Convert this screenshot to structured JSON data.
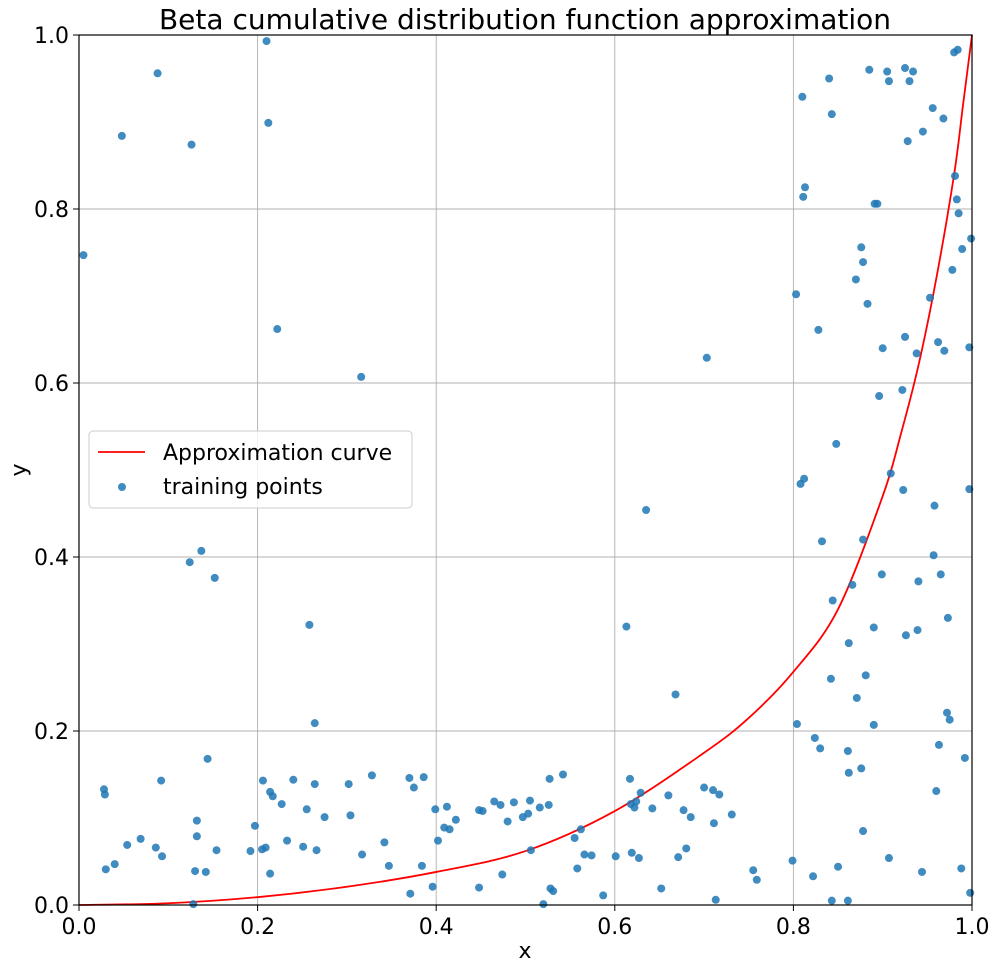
{
  "chart_data": {
    "type": "scatter",
    "title": "Beta cumulative distribution function approximation",
    "xlabel": "x",
    "ylabel": "y",
    "xlim": [
      0.0,
      1.0
    ],
    "ylim": [
      0.0,
      1.0
    ],
    "xticks": [
      "0.0",
      "0.2",
      "0.4",
      "0.6",
      "0.8",
      "1.0"
    ],
    "yticks": [
      "0.0",
      "0.2",
      "0.4",
      "0.6",
      "0.8",
      "1.0"
    ],
    "grid": true,
    "legend_position": "center-left",
    "curve": {
      "name": "Approximation curve",
      "color": "#ff0000",
      "x": [
        0.0,
        0.1,
        0.2,
        0.3,
        0.4,
        0.5,
        0.6,
        0.7,
        0.75,
        0.8,
        0.85,
        0.9,
        0.92,
        0.94,
        0.96,
        0.98,
        0.99,
        1.0
      ],
      "y": [
        0.0,
        0.002,
        0.009,
        0.021,
        0.038,
        0.062,
        0.108,
        0.175,
        0.215,
        0.268,
        0.34,
        0.47,
        0.54,
        0.62,
        0.72,
        0.84,
        0.92,
        1.0
      ]
    },
    "series": [
      {
        "name": "training points",
        "color": "#1f77b4",
        "points": [
          [
            0.005,
            0.747
          ],
          [
            0.028,
            0.133
          ],
          [
            0.029,
            0.127
          ],
          [
            0.03,
            0.041
          ],
          [
            0.04,
            0.047
          ],
          [
            0.048,
            0.884
          ],
          [
            0.054,
            0.069
          ],
          [
            0.069,
            0.076
          ],
          [
            0.086,
            0.066
          ],
          [
            0.088,
            0.956
          ],
          [
            0.092,
            0.143
          ],
          [
            0.093,
            0.056
          ],
          [
            0.124,
            0.394
          ],
          [
            0.126,
            0.874
          ],
          [
            0.128,
            0.001
          ],
          [
            0.13,
            0.039
          ],
          [
            0.132,
            0.097
          ],
          [
            0.132,
            0.079
          ],
          [
            0.137,
            0.407
          ],
          [
            0.142,
            0.038
          ],
          [
            0.144,
            0.168
          ],
          [
            0.152,
            0.376
          ],
          [
            0.154,
            0.063
          ],
          [
            0.192,
            0.062
          ],
          [
            0.197,
            0.091
          ],
          [
            0.205,
            0.064
          ],
          [
            0.206,
            0.143
          ],
          [
            0.209,
            0.066
          ],
          [
            0.21,
            0.993
          ],
          [
            0.212,
            0.899
          ],
          [
            0.214,
            0.13
          ],
          [
            0.214,
            0.036
          ],
          [
            0.217,
            0.125
          ],
          [
            0.222,
            0.662
          ],
          [
            0.227,
            0.116
          ],
          [
            0.233,
            0.074
          ],
          [
            0.24,
            0.144
          ],
          [
            0.251,
            0.067
          ],
          [
            0.255,
            0.11
          ],
          [
            0.258,
            0.322
          ],
          [
            0.264,
            0.209
          ],
          [
            0.264,
            0.139
          ],
          [
            0.266,
            0.063
          ],
          [
            0.275,
            0.101
          ],
          [
            0.302,
            0.139
          ],
          [
            0.304,
            0.103
          ],
          [
            0.316,
            0.607
          ],
          [
            0.317,
            0.058
          ],
          [
            0.328,
            0.149
          ],
          [
            0.342,
            0.072
          ],
          [
            0.347,
            0.045
          ],
          [
            0.37,
            0.146
          ],
          [
            0.371,
            0.013
          ],
          [
            0.375,
            0.135
          ],
          [
            0.384,
            0.045
          ],
          [
            0.386,
            0.147
          ],
          [
            0.396,
            0.021
          ],
          [
            0.399,
            0.11
          ],
          [
            0.402,
            0.074
          ],
          [
            0.409,
            0.089
          ],
          [
            0.412,
            0.113
          ],
          [
            0.415,
            0.087
          ],
          [
            0.422,
            0.098
          ],
          [
            0.448,
            0.109
          ],
          [
            0.448,
            0.02
          ],
          [
            0.452,
            0.108
          ],
          [
            0.465,
            0.119
          ],
          [
            0.472,
            0.115
          ],
          [
            0.474,
            0.035
          ],
          [
            0.48,
            0.096
          ],
          [
            0.487,
            0.118
          ],
          [
            0.497,
            0.101
          ],
          [
            0.503,
            0.105
          ],
          [
            0.505,
            0.12
          ],
          [
            0.506,
            0.063
          ],
          [
            0.516,
            0.112
          ],
          [
            0.52,
            0.001
          ],
          [
            0.526,
            0.115
          ],
          [
            0.527,
            0.145
          ],
          [
            0.528,
            0.019
          ],
          [
            0.531,
            0.016
          ],
          [
            0.542,
            0.15
          ],
          [
            0.555,
            0.077
          ],
          [
            0.558,
            0.042
          ],
          [
            0.562,
            0.087
          ],
          [
            0.566,
            0.058
          ],
          [
            0.574,
            0.057
          ],
          [
            0.587,
            0.011
          ],
          [
            0.601,
            0.056
          ],
          [
            0.613,
            0.32
          ],
          [
            0.617,
            0.145
          ],
          [
            0.618,
            0.116
          ],
          [
            0.619,
            0.06
          ],
          [
            0.622,
            0.112
          ],
          [
            0.624,
            0.119
          ],
          [
            0.627,
            0.054
          ],
          [
            0.629,
            0.129
          ],
          [
            0.635,
            0.454
          ],
          [
            0.642,
            0.111
          ],
          [
            0.652,
            0.019
          ],
          [
            0.66,
            0.126
          ],
          [
            0.668,
            0.242
          ],
          [
            0.671,
            0.055
          ],
          [
            0.677,
            0.109
          ],
          [
            0.68,
            0.065
          ],
          [
            0.685,
            0.101
          ],
          [
            0.7,
            0.135
          ],
          [
            0.703,
            0.629
          ],
          [
            0.71,
            0.132
          ],
          [
            0.711,
            0.094
          ],
          [
            0.713,
            0.006
          ],
          [
            0.717,
            0.127
          ],
          [
            0.731,
            0.104
          ],
          [
            0.755,
            0.04
          ],
          [
            0.759,
            0.029
          ],
          [
            0.799,
            0.051
          ],
          [
            0.803,
            0.702
          ],
          [
            0.804,
            0.208
          ],
          [
            0.808,
            0.484
          ],
          [
            0.81,
            0.929
          ],
          [
            0.811,
            0.814
          ],
          [
            0.812,
            0.49
          ],
          [
            0.813,
            0.825
          ],
          [
            0.822,
            0.033
          ],
          [
            0.824,
            0.192
          ],
          [
            0.828,
            0.661
          ],
          [
            0.83,
            0.18
          ],
          [
            0.832,
            0.418
          ],
          [
            0.84,
            0.95
          ],
          [
            0.842,
            0.26
          ],
          [
            0.843,
            0.005
          ],
          [
            0.843,
            0.909
          ],
          [
            0.844,
            0.35
          ],
          [
            0.848,
            0.53
          ],
          [
            0.85,
            0.044
          ],
          [
            0.861,
            0.177
          ],
          [
            0.861,
            0.005
          ],
          [
            0.862,
            0.301
          ],
          [
            0.862,
            0.152
          ],
          [
            0.866,
            0.368
          ],
          [
            0.87,
            0.719
          ],
          [
            0.871,
            0.238
          ],
          [
            0.876,
            0.756
          ],
          [
            0.876,
            0.157
          ],
          [
            0.878,
            0.739
          ],
          [
            0.878,
            0.42
          ],
          [
            0.878,
            0.085
          ],
          [
            0.881,
            0.264
          ],
          [
            0.883,
            0.691
          ],
          [
            0.885,
            0.96
          ],
          [
            0.89,
            0.319
          ],
          [
            0.89,
            0.207
          ],
          [
            0.891,
            0.806
          ],
          [
            0.894,
            0.806
          ],
          [
            0.896,
            0.585
          ],
          [
            0.899,
            0.38
          ],
          [
            0.9,
            0.64
          ],
          [
            0.905,
            0.958
          ],
          [
            0.907,
            0.947
          ],
          [
            0.907,
            0.054
          ],
          [
            0.909,
            0.496
          ],
          [
            0.922,
            0.592
          ],
          [
            0.923,
            0.477
          ],
          [
            0.925,
            0.962
          ],
          [
            0.925,
            0.653
          ],
          [
            0.926,
            0.31
          ],
          [
            0.928,
            0.878
          ],
          [
            0.93,
            0.947
          ],
          [
            0.934,
            0.958
          ],
          [
            0.938,
            0.634
          ],
          [
            0.939,
            0.316
          ],
          [
            0.94,
            0.372
          ],
          [
            0.944,
            0.038
          ],
          [
            0.945,
            0.889
          ],
          [
            0.953,
            0.698
          ],
          [
            0.956,
            0.916
          ],
          [
            0.957,
            0.402
          ],
          [
            0.958,
            0.459
          ],
          [
            0.96,
            0.131
          ],
          [
            0.962,
            0.647
          ],
          [
            0.963,
            0.184
          ],
          [
            0.965,
            0.38
          ],
          [
            0.968,
            0.904
          ],
          [
            0.969,
            0.637
          ],
          [
            0.972,
            0.221
          ],
          [
            0.973,
            0.33
          ],
          [
            0.975,
            0.213
          ],
          [
            0.978,
            0.73
          ],
          [
            0.98,
            0.98
          ],
          [
            0.981,
            0.838
          ],
          [
            0.983,
            0.811
          ],
          [
            0.984,
            0.983
          ],
          [
            0.985,
            0.795
          ],
          [
            0.988,
            0.042
          ],
          [
            0.989,
            0.754
          ],
          [
            0.992,
            0.169
          ],
          [
            0.997,
            0.641
          ],
          [
            0.997,
            0.478
          ],
          [
            0.998,
            0.014
          ],
          [
            0.999,
            0.766
          ]
        ]
      }
    ]
  }
}
